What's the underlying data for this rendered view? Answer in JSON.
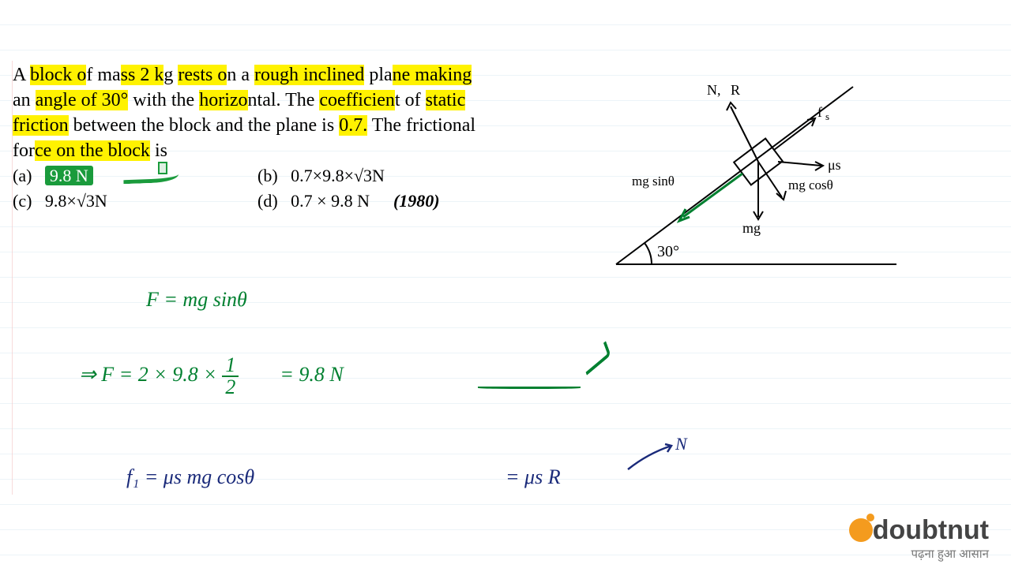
{
  "question": {
    "text_parts": [
      {
        "t": "A ",
        "hl": false
      },
      {
        "t": "block o",
        "hl": true
      },
      {
        "t": "f ma",
        "hl": false
      },
      {
        "t": "ss 2 k",
        "hl": true
      },
      {
        "t": "g ",
        "hl": false
      },
      {
        "t": "rests o",
        "hl": true
      },
      {
        "t": "n a ",
        "hl": false
      },
      {
        "t": "rough inclined",
        "hl": true
      },
      {
        "t": " pla",
        "hl": false
      },
      {
        "t": "ne making",
        "hl": true
      },
      {
        "br": true
      },
      {
        "t": "an ",
        "hl": false
      },
      {
        "t": "angle of 30°",
        "hl": true
      },
      {
        "t": " with the ",
        "hl": false
      },
      {
        "t": "horizo",
        "hl": true
      },
      {
        "t": "ntal. The ",
        "hl": false
      },
      {
        "t": "coefficien",
        "hl": true
      },
      {
        "t": "t of ",
        "hl": false
      },
      {
        "t": "static",
        "hl": true
      },
      {
        "br": true
      },
      {
        "t": "friction",
        "hl": true
      },
      {
        "t": " between the block and the plane is ",
        "hl": false
      },
      {
        "t": "0.7.",
        "hl": true
      },
      {
        "t": " The frictional",
        "hl": false
      },
      {
        "br": true
      },
      {
        "t": "for",
        "hl": false
      },
      {
        "t": "ce on the block",
        "hl": true
      },
      {
        "t": " is",
        "hl": false
      }
    ],
    "options": {
      "a": "9.8 N",
      "b": "0.7×9.8×√3N",
      "c": "9.8×√3N",
      "d": "0.7 × 9.8 N",
      "year": "(1980)"
    }
  },
  "work": {
    "line1": "F  =  mg sinθ",
    "line2_prefix": "⇒  F  =   2 × 9.8 × ",
    "line2_frac_num": "1",
    "line2_frac_den": "2",
    "line2_result": "=  9.8 N",
    "line3_lhs": "f₁  =   μs  mg cosθ",
    "line3_rhs": "=   μs R",
    "line3_note": "N"
  },
  "diagram": {
    "angle_label": "30°",
    "labels": {
      "N": "N,",
      "R": "R",
      "fs": "fs",
      "mu_s": "μs",
      "mgsin": "mg sinθ",
      "mgcos": "mg cosθ",
      "mg": "mg"
    },
    "colors": {
      "ink": "#000000",
      "accent": "#008030"
    }
  },
  "branding": {
    "name": "doubtnut",
    "tagline": "पढ़ना हुआ आसान"
  },
  "colors": {
    "highlight": "#fff200",
    "green": "#008030",
    "green_hl": "#1a9b3c",
    "blue": "#1a2a7a"
  }
}
